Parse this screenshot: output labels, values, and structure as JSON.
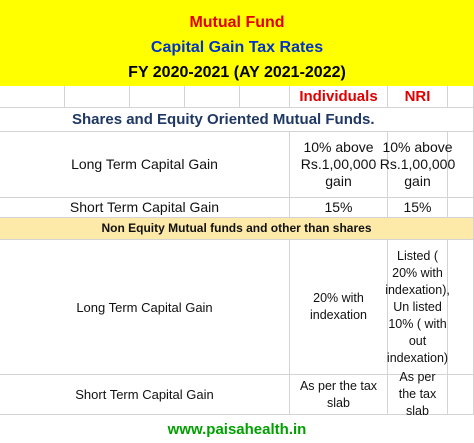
{
  "header": {
    "title": "Mutual Fund",
    "subtitle": "Capital Gain Tax Rates",
    "period": "FY 2020-2021 (AY 2021-2022)"
  },
  "table": {
    "columns": [
      "Individuals",
      "NRI"
    ],
    "sections": [
      {
        "title": "Shares and Equity Oriented Mutual Funds.",
        "rows": [
          [
            "Long Term Capital Gain",
            "10% above Rs.1,00,000 gain",
            "10% above Rs.1,00,000 gain"
          ],
          [
            "Short Term Capital Gain",
            "15%",
            "15%"
          ]
        ]
      },
      {
        "title": "Non Equity Mutual funds and other than shares",
        "rows": [
          [
            "Long Term Capital Gain",
            "20% with indexation",
            "Listed ( 20% with indexation), Un listed 10% ( with out indexation)"
          ],
          [
            "Short Term Capital Gain",
            "As per the tax slab",
            "As per the tax slab"
          ]
        ]
      }
    ]
  },
  "footer": "www.paisahealth.in"
}
